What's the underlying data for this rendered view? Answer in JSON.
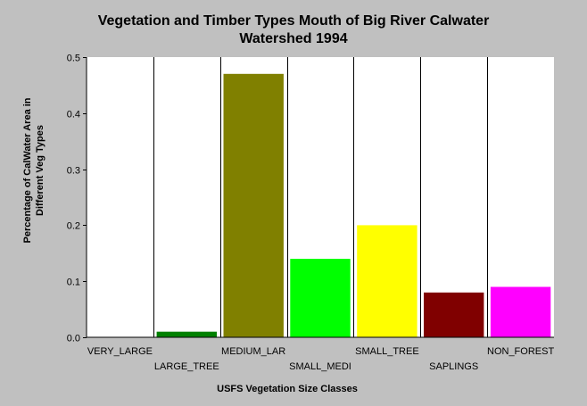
{
  "chart_data": {
    "type": "bar",
    "title": "Vegetation and Timber Types Mouth of Big River Calwater\nWatershed 1994",
    "xlabel": "USFS Vegetation Size Classes",
    "ylabel_lines": [
      "Percentage of CalWater Area in",
      "Different Veg Types"
    ],
    "categories": [
      "VERY_LARGE",
      "LARGE_TREE",
      "MEDIUM_LAR",
      "SMALL_MEDI",
      "SMALL_TREE",
      "SAPLINGS",
      "NON_FOREST"
    ],
    "values": [
      0,
      0.01,
      0.47,
      0.14,
      0.2,
      0.08,
      0.09
    ],
    "colors": [
      "#008000",
      "#008000",
      "#808000",
      "#00ff00",
      "#ffff00",
      "#800000",
      "#ff00ff"
    ],
    "ylim": [
      0,
      0.5
    ],
    "yticks": [
      "0.0",
      "0.1",
      "0.2",
      "0.3",
      "0.4",
      "0.5"
    ],
    "ytick_values": [
      0,
      0.1,
      0.2,
      0.3,
      0.4,
      0.5
    ],
    "grid": "vertical",
    "legend": "none"
  }
}
